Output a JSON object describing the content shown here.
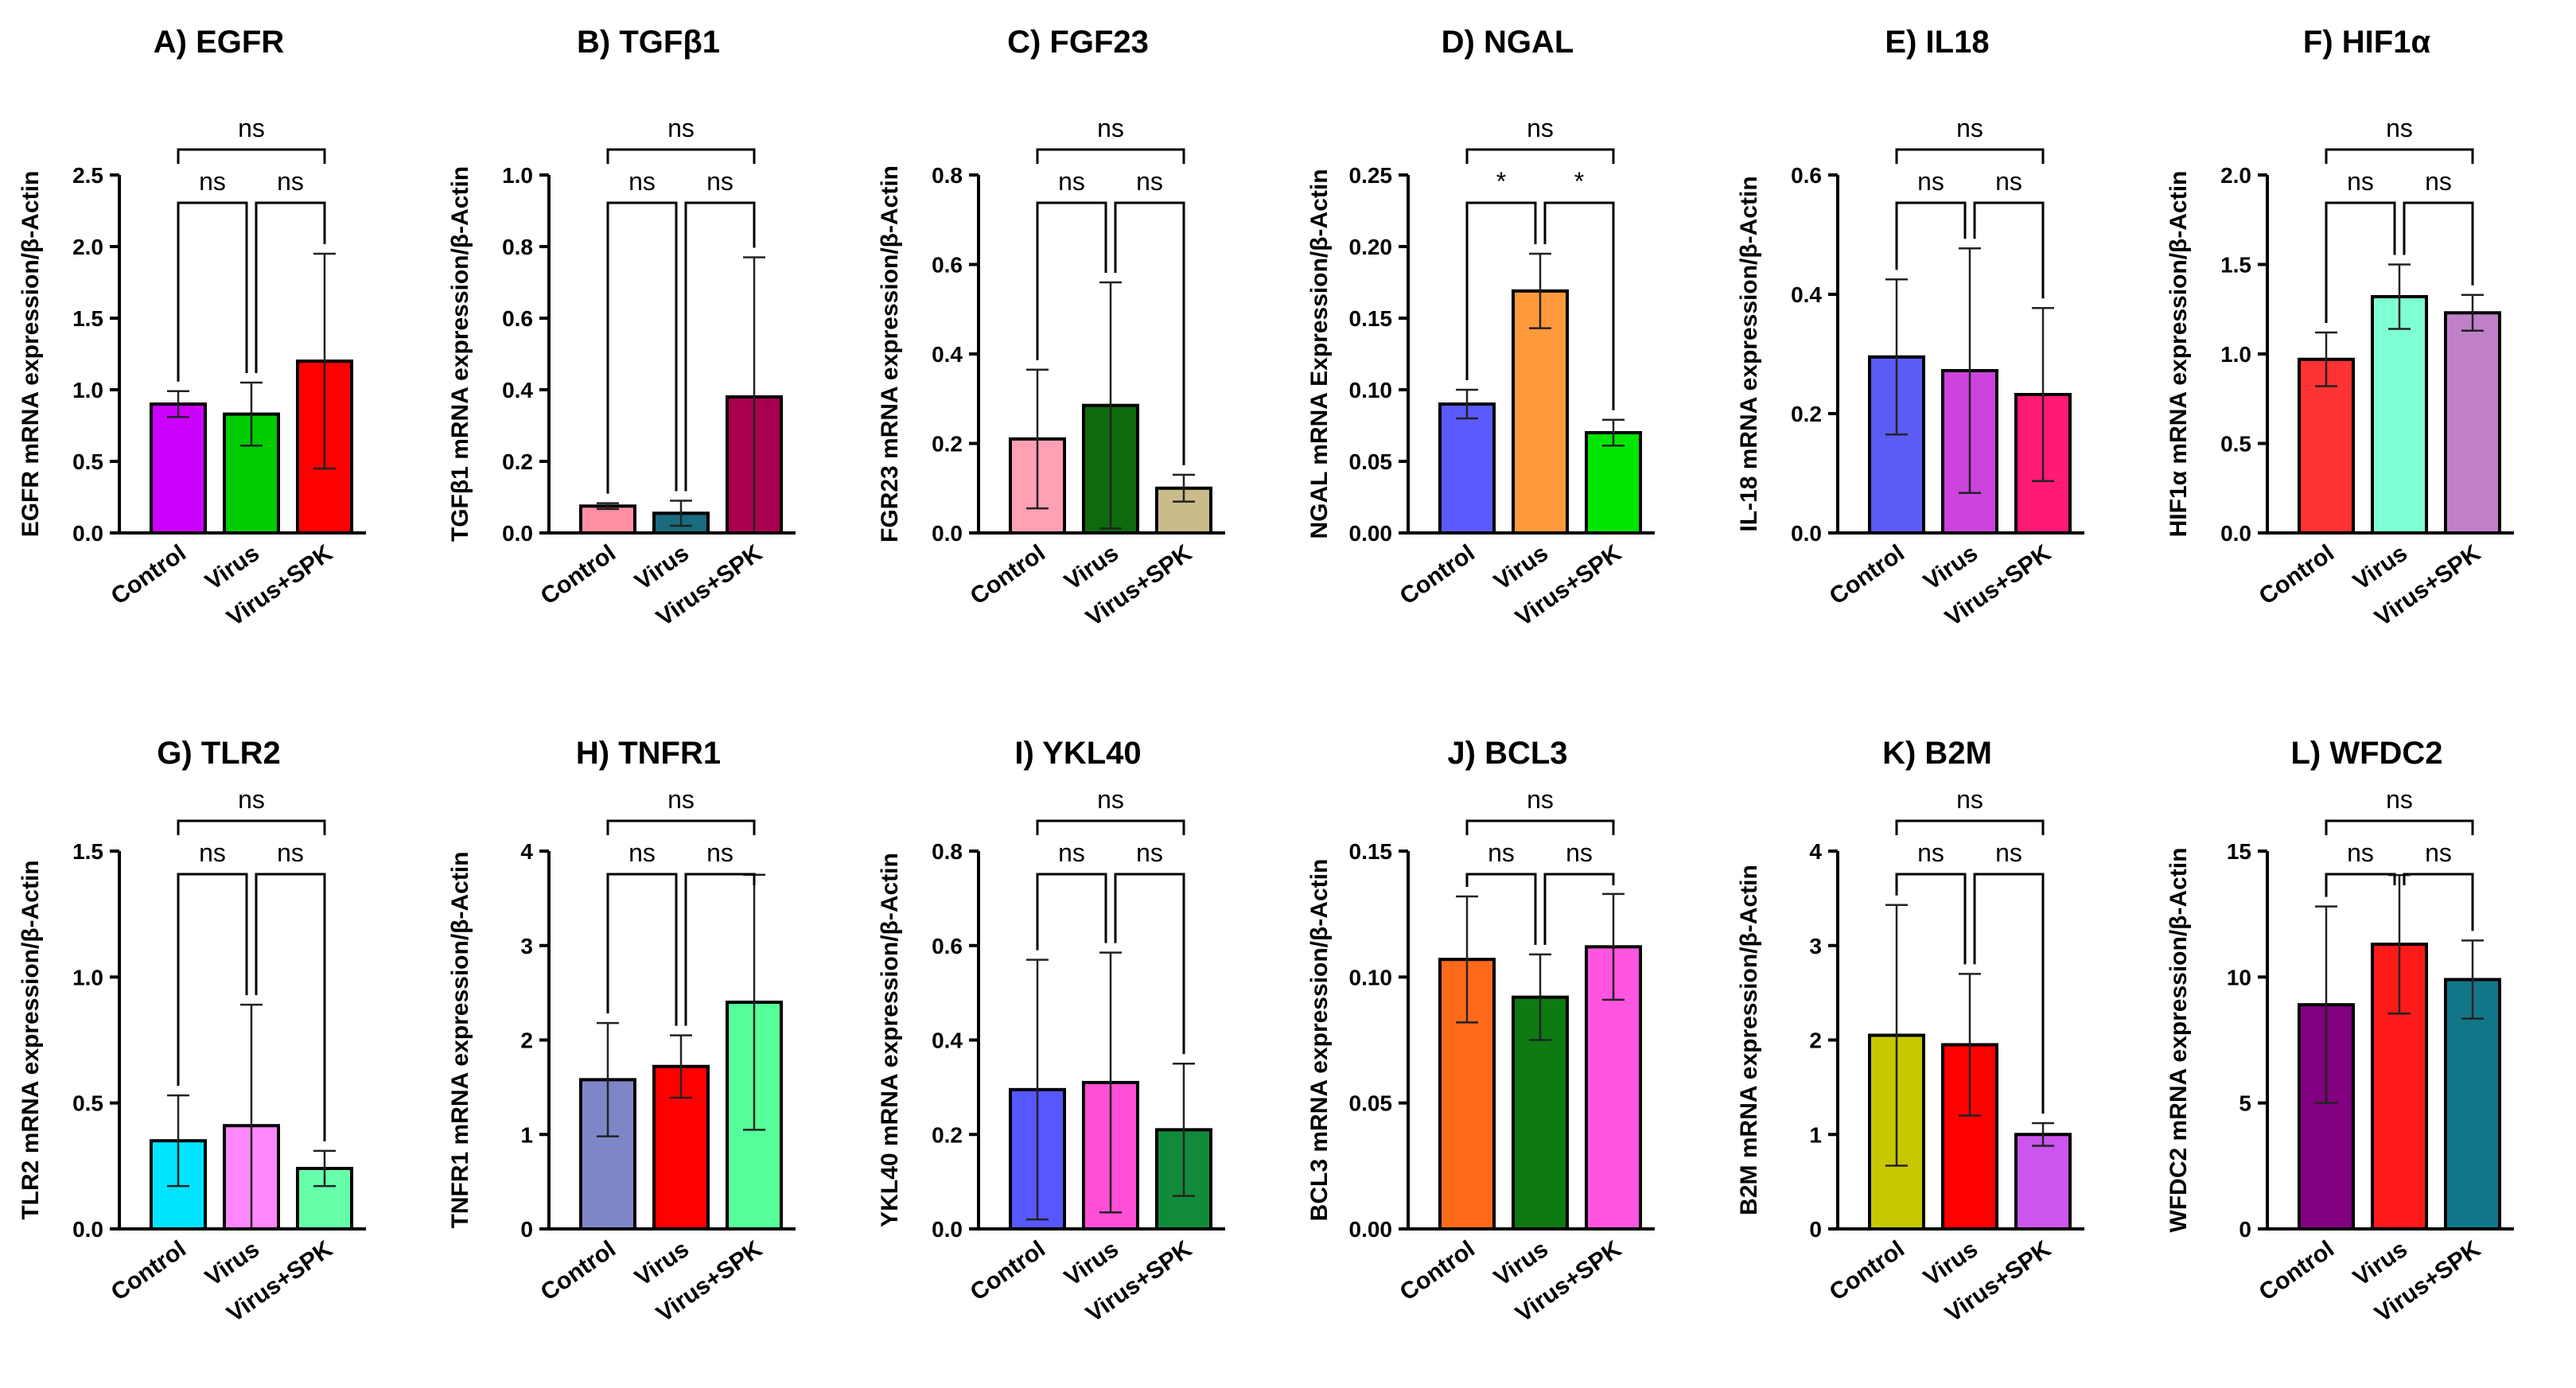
{
  "figure": {
    "panel_count": 12
  },
  "chart_data": [
    {
      "type": "bar",
      "title": "A) EGFR",
      "ylabel": "EGFR mRNA expression/β-Actin",
      "categories": [
        "Control",
        "Virus",
        "Virus+SPK"
      ],
      "values": [
        0.9,
        0.83,
        1.2
      ],
      "errors": [
        0.09,
        0.22,
        0.75
      ],
      "colors": [
        "#cc00ff",
        "#00cc00",
        "#ff0000"
      ],
      "ylim": [
        0,
        2.5
      ],
      "yticks": [
        "0.0",
        "0.5",
        "1.0",
        "1.5",
        "2.0",
        "2.5"
      ],
      "comparisons": [
        {
          "pair": [
            0,
            1
          ],
          "label": "ns"
        },
        {
          "pair": [
            1,
            2
          ],
          "label": "ns"
        },
        {
          "pair": [
            0,
            2
          ],
          "label": "ns"
        }
      ]
    },
    {
      "type": "bar",
      "title": "B) TGFβ1",
      "ylabel": "TGFβ1 mRNA expression/β-Actin",
      "categories": [
        "Control",
        "Virus",
        "Virus+SPK"
      ],
      "values": [
        0.075,
        0.055,
        0.38
      ],
      "errors": [
        0.008,
        0.035,
        0.39
      ],
      "colors": [
        "#ff8fa3",
        "#1a6b7f",
        "#a8004f"
      ],
      "ylim": [
        0,
        1.0
      ],
      "yticks": [
        "0.0",
        "0.2",
        "0.4",
        "0.6",
        "0.8",
        "1.0"
      ],
      "comparisons": [
        {
          "pair": [
            0,
            1
          ],
          "label": "ns"
        },
        {
          "pair": [
            1,
            2
          ],
          "label": "ns"
        },
        {
          "pair": [
            0,
            2
          ],
          "label": "ns"
        }
      ]
    },
    {
      "type": "bar",
      "title": "C) FGF23",
      "ylabel": "FGR23 mRNA expression/β-Actin",
      "categories": [
        "Control",
        "Virus",
        "Virus+SPK"
      ],
      "values": [
        0.21,
        0.285,
        0.1
      ],
      "errors": [
        0.155,
        0.275,
        0.03
      ],
      "colors": [
        "#ffa0b4",
        "#0d6b0d",
        "#c9bb8a"
      ],
      "ylim": [
        0,
        0.8
      ],
      "yticks": [
        "0.0",
        "0.2",
        "0.4",
        "0.6",
        "0.8"
      ],
      "comparisons": [
        {
          "pair": [
            0,
            1
          ],
          "label": "ns"
        },
        {
          "pair": [
            1,
            2
          ],
          "label": "ns"
        },
        {
          "pair": [
            0,
            2
          ],
          "label": "ns"
        }
      ]
    },
    {
      "type": "bar",
      "title": "D) NGAL",
      "ylabel": "NGAL mRNA Expression/β-Actin",
      "categories": [
        "Control",
        "Virus",
        "Virus+SPK"
      ],
      "values": [
        0.09,
        0.169,
        0.07
      ],
      "errors": [
        0.01,
        0.026,
        0.009
      ],
      "colors": [
        "#5a5aff",
        "#ff9a3c",
        "#00e600"
      ],
      "ylim": [
        0,
        0.25
      ],
      "yticks": [
        "0.00",
        "0.05",
        "0.10",
        "0.15",
        "0.20",
        "0.25"
      ],
      "comparisons": [
        {
          "pair": [
            0,
            1
          ],
          "label": "*"
        },
        {
          "pair": [
            1,
            2
          ],
          "label": "*"
        },
        {
          "pair": [
            0,
            2
          ],
          "label": "ns"
        }
      ]
    },
    {
      "type": "bar",
      "title": "E) IL18",
      "ylabel": "IL-18 mRNA expression/β-Actin",
      "categories": [
        "Control",
        "Virus",
        "Virus+SPK"
      ],
      "values": [
        0.295,
        0.272,
        0.232
      ],
      "errors": [
        0.13,
        0.205,
        0.145
      ],
      "colors": [
        "#5b5bf5",
        "#cc44dd",
        "#ff1a75"
      ],
      "ylim": [
        0,
        0.6
      ],
      "yticks": [
        "0.0",
        "0.2",
        "0.4",
        "0.6"
      ],
      "comparisons": [
        {
          "pair": [
            0,
            1
          ],
          "label": "ns"
        },
        {
          "pair": [
            1,
            2
          ],
          "label": "ns"
        },
        {
          "pair": [
            0,
            2
          ],
          "label": "ns"
        }
      ]
    },
    {
      "type": "bar",
      "title": "F) HIF1α",
      "ylabel": "HIF1α mRNA expression/β-Actin",
      "categories": [
        "Control",
        "Virus",
        "Virus+SPK"
      ],
      "values": [
        0.97,
        1.32,
        1.23
      ],
      "errors": [
        0.15,
        0.18,
        0.1
      ],
      "colors": [
        "#ff3333",
        "#7fffd4",
        "#c080c8"
      ],
      "ylim": [
        0,
        2.0
      ],
      "yticks": [
        "0.0",
        "0.5",
        "1.0",
        "1.5",
        "2.0"
      ],
      "comparisons": [
        {
          "pair": [
            0,
            1
          ],
          "label": "ns"
        },
        {
          "pair": [
            1,
            2
          ],
          "label": "ns"
        },
        {
          "pair": [
            0,
            2
          ],
          "label": "ns"
        }
      ]
    },
    {
      "type": "bar",
      "title": "G) TLR2",
      "ylabel": "TLR2 mRNA expression/β-Actin",
      "categories": [
        "Control",
        "Virus",
        "Virus+SPK"
      ],
      "values": [
        0.35,
        0.41,
        0.24
      ],
      "errors": [
        0.18,
        0.48,
        0.07
      ],
      "colors": [
        "#00e5ff",
        "#ff88ff",
        "#66ffaa"
      ],
      "ylim": [
        0,
        1.5
      ],
      "yticks": [
        "0.0",
        "0.5",
        "1.0",
        "1.5"
      ],
      "comparisons": [
        {
          "pair": [
            0,
            1
          ],
          "label": "ns"
        },
        {
          "pair": [
            1,
            2
          ],
          "label": "ns"
        },
        {
          "pair": [
            0,
            2
          ],
          "label": "ns"
        }
      ]
    },
    {
      "type": "bar",
      "title": "H) TNFR1",
      "ylabel": "TNFR1 mRNA expression/β-Actin",
      "categories": [
        "Control",
        "Virus",
        "Virus+SPK"
      ],
      "values": [
        1.58,
        1.72,
        2.4
      ],
      "errors": [
        0.6,
        0.33,
        1.35
      ],
      "colors": [
        "#7f86c8",
        "#ff0000",
        "#55ff99"
      ],
      "ylim": [
        0,
        4
      ],
      "yticks": [
        "0",
        "1",
        "2",
        "3",
        "4"
      ],
      "comparisons": [
        {
          "pair": [
            0,
            1
          ],
          "label": "ns"
        },
        {
          "pair": [
            1,
            2
          ],
          "label": "ns"
        },
        {
          "pair": [
            0,
            2
          ],
          "label": "ns"
        }
      ]
    },
    {
      "type": "bar",
      "title": "I) YKL40",
      "ylabel": "YKL40 mRNA expression/β-Actin",
      "categories": [
        "Control",
        "Virus",
        "Virus+SPK"
      ],
      "values": [
        0.295,
        0.31,
        0.21
      ],
      "errors": [
        0.275,
        0.275,
        0.14
      ],
      "colors": [
        "#5757ff",
        "#ff4fd8",
        "#118a3a"
      ],
      "ylim": [
        0,
        0.8
      ],
      "yticks": [
        "0.0",
        "0.2",
        "0.4",
        "0.6",
        "0.8"
      ],
      "comparisons": [
        {
          "pair": [
            0,
            1
          ],
          "label": "ns"
        },
        {
          "pair": [
            1,
            2
          ],
          "label": "ns"
        },
        {
          "pair": [
            0,
            2
          ],
          "label": "ns"
        }
      ]
    },
    {
      "type": "bar",
      "title": "J) BCL3",
      "ylabel": "BCL3 mRNA expression/β-Actin",
      "categories": [
        "Control",
        "Virus",
        "Virus+SPK"
      ],
      "values": [
        0.107,
        0.092,
        0.112
      ],
      "errors": [
        0.025,
        0.017,
        0.021
      ],
      "colors": [
        "#ff6a1a",
        "#0e7a14",
        "#ff55e0"
      ],
      "ylim": [
        0,
        0.15
      ],
      "yticks": [
        "0.00",
        "0.05",
        "0.10",
        "0.15"
      ],
      "comparisons": [
        {
          "pair": [
            0,
            1
          ],
          "label": "ns"
        },
        {
          "pair": [
            1,
            2
          ],
          "label": "ns"
        },
        {
          "pair": [
            0,
            2
          ],
          "label": "ns"
        }
      ]
    },
    {
      "type": "bar",
      "title": "K) B2M",
      "ylabel": "B2M mRNA expression/β-Actin",
      "categories": [
        "Control",
        "Virus",
        "Virus+SPK"
      ],
      "values": [
        2.05,
        1.95,
        1.0
      ],
      "errors": [
        1.38,
        0.75,
        0.12
      ],
      "colors": [
        "#c8c800",
        "#ff0000",
        "#cc55ee"
      ],
      "ylim": [
        0,
        4
      ],
      "yticks": [
        "0",
        "1",
        "2",
        "3",
        "4"
      ],
      "comparisons": [
        {
          "pair": [
            0,
            1
          ],
          "label": "ns"
        },
        {
          "pair": [
            1,
            2
          ],
          "label": "ns"
        },
        {
          "pair": [
            0,
            2
          ],
          "label": "ns"
        }
      ]
    },
    {
      "type": "bar",
      "title": "L) WFDC2",
      "ylabel": "WFDC2 mRNA expression/β-Actin",
      "categories": [
        "Control",
        "Virus",
        "Virus+SPK"
      ],
      "values": [
        8.9,
        11.3,
        9.9
      ],
      "errors": [
        3.9,
        2.75,
        1.55
      ],
      "colors": [
        "#800080",
        "#ff1a1a",
        "#117788"
      ],
      "ylim": [
        0,
        15
      ],
      "yticks": [
        "0",
        "5",
        "10",
        "15"
      ],
      "comparisons": [
        {
          "pair": [
            0,
            1
          ],
          "label": "ns"
        },
        {
          "pair": [
            1,
            2
          ],
          "label": "ns"
        },
        {
          "pair": [
            0,
            2
          ],
          "label": "ns"
        }
      ]
    }
  ]
}
